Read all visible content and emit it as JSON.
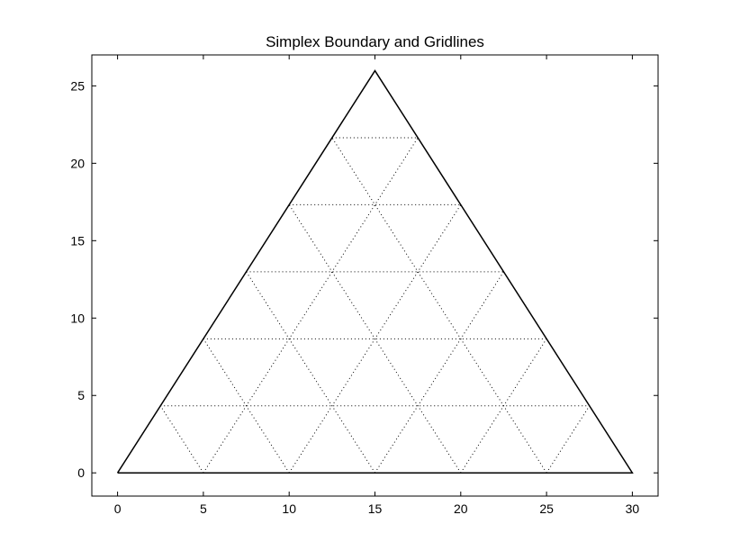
{
  "chart_data": {
    "type": "line",
    "title": "Simplex Boundary and Gridlines",
    "xlabel": "",
    "ylabel": "",
    "xlim": [
      -1.5,
      31.5
    ],
    "ylim": [
      -1.5,
      27.0
    ],
    "x_ticks": [
      0,
      5,
      10,
      15,
      20,
      25,
      30
    ],
    "y_ticks": [
      0,
      5,
      10,
      15,
      20,
      25
    ],
    "x_tick_labels": [
      "0",
      "5",
      "10",
      "15",
      "20",
      "25",
      "30"
    ],
    "y_tick_labels": [
      "0",
      "5",
      "10",
      "15",
      "20",
      "25"
    ],
    "grid": false,
    "boundary": {
      "style": "solid",
      "color": "#000000",
      "x": [
        0,
        30,
        15,
        0
      ],
      "y": [
        0,
        0,
        25.98,
        0
      ]
    },
    "gridlines": {
      "style": "dotted",
      "color": "#000000",
      "segments": [
        {
          "x": [
            2.5,
            27.5
          ],
          "y": [
            4.33,
            4.33
          ]
        },
        {
          "x": [
            5,
            25
          ],
          "y": [
            8.66,
            8.66
          ]
        },
        {
          "x": [
            7.5,
            22.5
          ],
          "y": [
            12.99,
            12.99
          ]
        },
        {
          "x": [
            10,
            20
          ],
          "y": [
            17.32,
            17.32
          ]
        },
        {
          "x": [
            12.5,
            17.5
          ],
          "y": [
            21.65,
            21.65
          ]
        },
        {
          "x": [
            5,
            2.5
          ],
          "y": [
            0,
            4.33
          ]
        },
        {
          "x": [
            10,
            5
          ],
          "y": [
            0,
            8.66
          ]
        },
        {
          "x": [
            15,
            7.5
          ],
          "y": [
            0,
            12.99
          ]
        },
        {
          "x": [
            20,
            10
          ],
          "y": [
            0,
            17.32
          ]
        },
        {
          "x": [
            25,
            12.5
          ],
          "y": [
            0,
            21.65
          ]
        },
        {
          "x": [
            5,
            17.5
          ],
          "y": [
            0,
            21.65
          ]
        },
        {
          "x": [
            10,
            20
          ],
          "y": [
            0,
            17.32
          ]
        },
        {
          "x": [
            15,
            22.5
          ],
          "y": [
            0,
            12.99
          ]
        },
        {
          "x": [
            20,
            25
          ],
          "y": [
            0,
            8.66
          ]
        },
        {
          "x": [
            25,
            27.5
          ],
          "y": [
            0,
            4.33
          ]
        }
      ]
    }
  }
}
